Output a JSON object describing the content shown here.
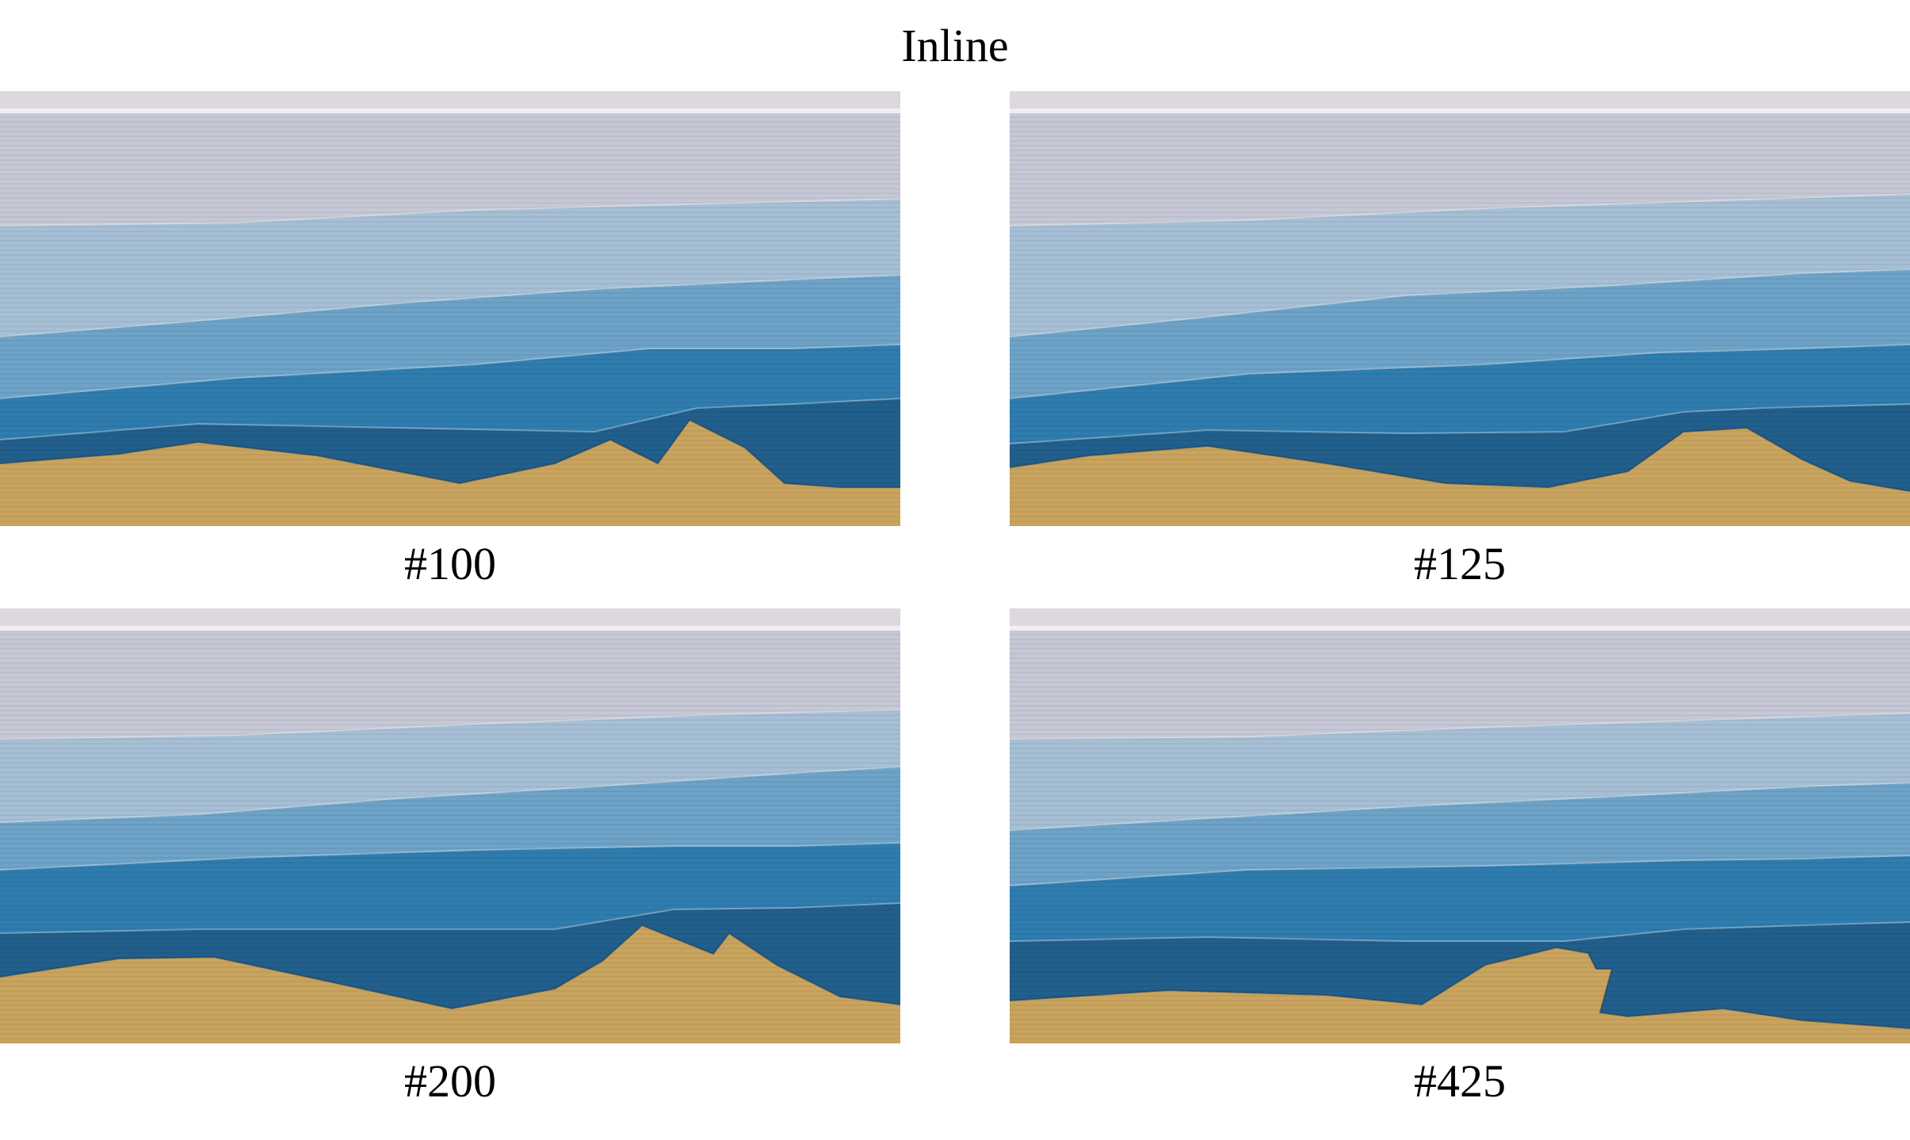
{
  "title": "Inline",
  "panels": [
    {
      "label": "#100",
      "boundaries": [
        [
          [
            0,
            170
          ],
          [
            300,
            166
          ],
          [
            600,
            150
          ],
          [
            900,
            142
          ],
          [
            1136,
            136
          ]
        ],
        [
          [
            0,
            310
          ],
          [
            250,
            290
          ],
          [
            500,
            268
          ],
          [
            750,
            250
          ],
          [
            1000,
            238
          ],
          [
            1136,
            232
          ]
        ],
        [
          [
            0,
            388
          ],
          [
            300,
            362
          ],
          [
            600,
            345
          ],
          [
            820,
            325
          ],
          [
            1000,
            325
          ],
          [
            1136,
            320
          ]
        ],
        [
          [
            0,
            440
          ],
          [
            250,
            420
          ],
          [
            500,
            425
          ],
          [
            750,
            430
          ],
          [
            880,
            400
          ],
          [
            1000,
            395
          ],
          [
            1136,
            388
          ]
        ],
        [
          [
            0,
            470
          ],
          [
            150,
            458
          ],
          [
            250,
            443
          ],
          [
            400,
            460
          ],
          [
            580,
            495
          ],
          [
            700,
            470
          ],
          [
            770,
            440
          ],
          [
            830,
            470
          ],
          [
            870,
            415
          ],
          [
            940,
            450
          ],
          [
            990,
            495
          ],
          [
            1060,
            500
          ],
          [
            1136,
            500
          ]
        ]
      ]
    },
    {
      "label": "#125",
      "boundaries": [
        [
          [
            0,
            170
          ],
          [
            300,
            163
          ],
          [
            600,
            148
          ],
          [
            900,
            138
          ],
          [
            1136,
            130
          ]
        ],
        [
          [
            0,
            310
          ],
          [
            250,
            285
          ],
          [
            500,
            258
          ],
          [
            750,
            246
          ],
          [
            1000,
            230
          ],
          [
            1136,
            225
          ]
        ],
        [
          [
            0,
            388
          ],
          [
            300,
            357
          ],
          [
            600,
            345
          ],
          [
            820,
            330
          ],
          [
            1000,
            325
          ],
          [
            1136,
            320
          ]
        ],
        [
          [
            0,
            445
          ],
          [
            250,
            428
          ],
          [
            500,
            432
          ],
          [
            700,
            430
          ],
          [
            850,
            405
          ],
          [
            950,
            400
          ],
          [
            1136,
            395
          ]
        ],
        [
          [
            0,
            475
          ],
          [
            100,
            460
          ],
          [
            250,
            448
          ],
          [
            400,
            470
          ],
          [
            550,
            495
          ],
          [
            680,
            500
          ],
          [
            780,
            480
          ],
          [
            850,
            430
          ],
          [
            930,
            425
          ],
          [
            1000,
            465
          ],
          [
            1060,
            492
          ],
          [
            1136,
            505
          ]
        ]
      ]
    },
    {
      "label": "#200",
      "boundaries": [
        [
          [
            0,
            165
          ],
          [
            300,
            160
          ],
          [
            600,
            146
          ],
          [
            900,
            134
          ],
          [
            1136,
            128
          ]
        ],
        [
          [
            0,
            270
          ],
          [
            250,
            260
          ],
          [
            500,
            240
          ],
          [
            750,
            225
          ],
          [
            1000,
            208
          ],
          [
            1136,
            200
          ]
        ],
        [
          [
            0,
            330
          ],
          [
            300,
            315
          ],
          [
            600,
            305
          ],
          [
            850,
            300
          ],
          [
            1000,
            300
          ],
          [
            1136,
            296
          ]
        ],
        [
          [
            0,
            410
          ],
          [
            250,
            405
          ],
          [
            500,
            405
          ],
          [
            700,
            405
          ],
          [
            850,
            380
          ],
          [
            1000,
            378
          ],
          [
            1136,
            372
          ]
        ],
        [
          [
            0,
            465
          ],
          [
            150,
            442
          ],
          [
            270,
            440
          ],
          [
            420,
            472
          ],
          [
            570,
            505
          ],
          [
            700,
            480
          ],
          [
            760,
            445
          ],
          [
            810,
            400
          ],
          [
            860,
            420
          ],
          [
            900,
            436
          ],
          [
            920,
            410
          ],
          [
            980,
            450
          ],
          [
            1060,
            490
          ],
          [
            1136,
            500
          ]
        ]
      ]
    },
    {
      "label": "#425",
      "boundaries": [
        [
          [
            0,
            165
          ],
          [
            300,
            162
          ],
          [
            600,
            150
          ],
          [
            900,
            140
          ],
          [
            1136,
            132
          ]
        ],
        [
          [
            0,
            280
          ],
          [
            250,
            265
          ],
          [
            500,
            250
          ],
          [
            750,
            238
          ],
          [
            1000,
            225
          ],
          [
            1136,
            220
          ]
        ],
        [
          [
            0,
            350
          ],
          [
            300,
            330
          ],
          [
            600,
            325
          ],
          [
            850,
            318
          ],
          [
            1000,
            316
          ],
          [
            1136,
            312
          ]
        ],
        [
          [
            0,
            420
          ],
          [
            250,
            415
          ],
          [
            500,
            420
          ],
          [
            700,
            420
          ],
          [
            850,
            405
          ],
          [
            1000,
            400
          ],
          [
            1136,
            396
          ]
        ],
        [
          [
            0,
            495
          ],
          [
            200,
            482
          ],
          [
            400,
            488
          ],
          [
            520,
            500
          ],
          [
            600,
            450
          ],
          [
            690,
            428
          ],
          [
            730,
            435
          ],
          [
            740,
            455
          ],
          [
            760,
            455
          ],
          [
            745,
            510
          ],
          [
            780,
            515
          ],
          [
            900,
            505
          ],
          [
            1000,
            520
          ],
          [
            1136,
            530
          ]
        ]
      ]
    }
  ],
  "colors": {
    "background": "#ffffff",
    "layer_top": "#c6c8d6",
    "layer_2": "#a6bfd5",
    "layer_3": "#6ea3c8",
    "layer_4": "#2f7daf",
    "layer_5": "#215f8c",
    "bedrock": "#c9a45e",
    "band_top": "#ddd8de"
  }
}
